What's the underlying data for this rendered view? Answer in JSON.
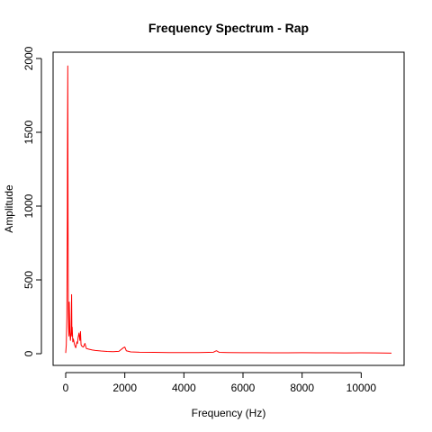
{
  "chart_data": {
    "type": "line",
    "title": "Frequency Spectrum - Rap",
    "xlabel": "Frequency (Hz)",
    "ylabel": "Amplitude",
    "xlim": [
      0,
      11025
    ],
    "ylim": [
      0,
      2000
    ],
    "x_ticks": [
      0,
      2000,
      4000,
      6000,
      8000,
      10000
    ],
    "y_ticks": [
      0,
      500,
      1000,
      1500,
      2000
    ],
    "x_tick_labels": [
      "0",
      "2000",
      "4000",
      "6000",
      "8000",
      "10000"
    ],
    "y_tick_labels": [
      "0",
      "500",
      "1000",
      "1500",
      "2000"
    ],
    "grid": false,
    "color": "#ff0000",
    "series": [
      {
        "x": [
          0,
          20,
          40,
          55,
          60,
          70,
          80,
          90,
          100,
          110,
          120,
          140,
          160,
          180,
          200,
          210,
          220,
          240,
          260,
          300,
          340,
          380,
          400,
          420,
          450,
          480,
          500,
          520,
          550,
          600,
          650,
          700,
          800,
          900,
          1000,
          1200,
          1400,
          1600,
          1800,
          1950,
          2000,
          2050,
          2200,
          2500,
          3000,
          3500,
          4000,
          4500,
          5000,
          5100,
          5200,
          5500,
          6000,
          6500,
          7000,
          7500,
          8000,
          8500,
          9000,
          9500,
          10000,
          10500,
          11025
        ],
        "values": [
          5,
          60,
          250,
          950,
          1400,
          1950,
          900,
          300,
          180,
          120,
          350,
          150,
          90,
          140,
          400,
          120,
          180,
          80,
          100,
          60,
          40,
          80,
          70,
          110,
          140,
          90,
          150,
          60,
          50,
          45,
          70,
          35,
          30,
          25,
          22,
          18,
          15,
          14,
          16,
          40,
          45,
          20,
          12,
          10,
          9,
          8,
          8,
          8,
          10,
          20,
          9,
          8,
          7,
          7,
          6,
          6,
          7,
          6,
          6,
          5,
          6,
          5,
          4
        ]
      }
    ]
  }
}
